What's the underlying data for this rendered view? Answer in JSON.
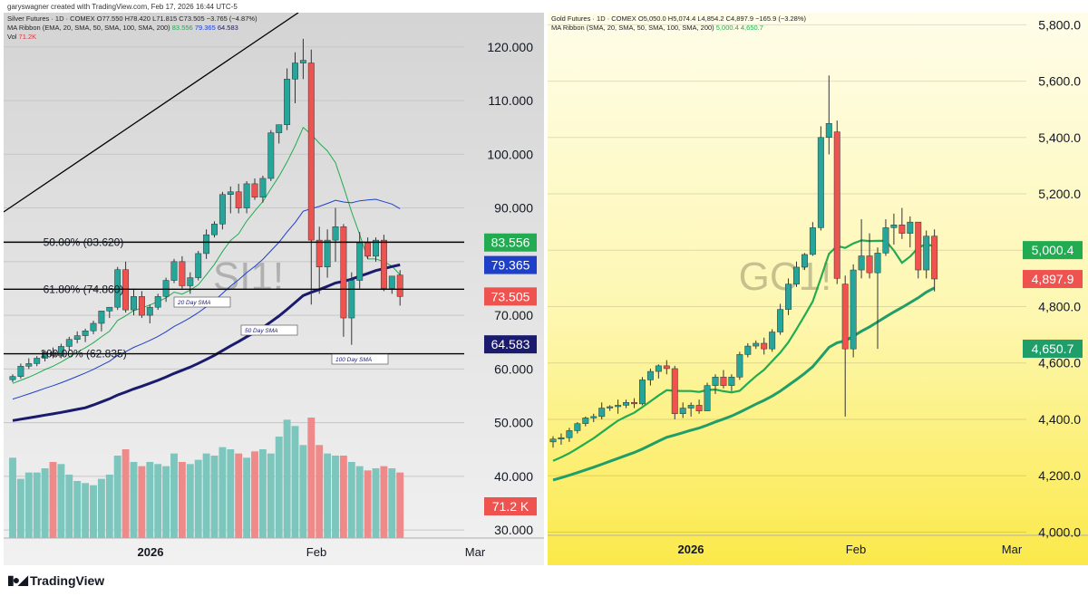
{
  "header": {
    "credit": "garyswagner created with TradingView.com, Feb 17, 2026 16:44 UTC-5"
  },
  "footer": {
    "brand": "TradingView"
  },
  "colors": {
    "up": "#26a69a",
    "down": "#ef5350",
    "sma20": "#22ab50",
    "sma50": "#1e40c8",
    "sma100": "#1a1a6e",
    "gold_sma20": "#22ab50",
    "gold_sma50": "#1f9e6a",
    "vol_up": "#7dc6bd",
    "vol_down": "#ef8a8a"
  },
  "chart_data": [
    {
      "type": "candlestick",
      "symbol_watermark": "SI1!",
      "legend": {
        "line1": "Silver Futures · 1D · COMEX  O77.550  H78.420  L71.815  C73.505  −3.765 (−4.87%)",
        "ribbon_label": "MA Ribbon (EMA, 20, SMA, 50, SMA, 100, SMA, 200)",
        "ribbon_values": [
          "83.556",
          "79.365",
          "64.583"
        ],
        "vol_label": "Vol",
        "vol_value": "71.2K"
      },
      "x_labels": [
        "2026",
        "Feb",
        "Mar"
      ],
      "ylim": [
        28.5,
        123
      ],
      "y_ticks": [
        "120.000",
        "110.000",
        "100.000",
        "90.000",
        "80.000",
        "70.000",
        "60.000",
        "50.000",
        "40.000",
        "30.000"
      ],
      "y_tick_values": [
        120,
        110,
        100,
        90,
        80,
        70,
        60,
        50,
        40,
        30
      ],
      "candles": [
        [
          58.0,
          59.0,
          57.5,
          58.6
        ],
        [
          58.6,
          61.0,
          58.2,
          60.5
        ],
        [
          60.5,
          62.0,
          60.0,
          61.0
        ],
        [
          61.0,
          62.4,
          60.5,
          62.0
        ],
        [
          62.0,
          63.5,
          61.4,
          63.1
        ],
        [
          63.1,
          64.0,
          62.0,
          62.5
        ],
        [
          62.5,
          64.7,
          62.0,
          64.2
        ],
        [
          64.2,
          66.0,
          63.5,
          65.5
        ],
        [
          65.5,
          67.0,
          64.8,
          66.2
        ],
        [
          66.2,
          67.5,
          65.0,
          67.1
        ],
        [
          67.1,
          69.0,
          66.5,
          68.5
        ],
        [
          68.5,
          70.0,
          67.0,
          70.8
        ],
        [
          70.8,
          71.5,
          69.5,
          71.5
        ],
        [
          71.5,
          79.0,
          71.0,
          78.5
        ],
        [
          78.5,
          80.0,
          70.5,
          71.0
        ],
        [
          71.0,
          75.0,
          70.0,
          73.5
        ],
        [
          73.5,
          74.5,
          69.5,
          70.0
        ],
        [
          70.0,
          72.0,
          68.5,
          71.5
        ],
        [
          71.5,
          74.0,
          71.0,
          73.5
        ],
        [
          73.5,
          77.0,
          72.5,
          76.5
        ],
        [
          76.5,
          80.5,
          76.0,
          80.0
        ],
        [
          80.0,
          81.0,
          75.0,
          75.5
        ],
        [
          75.5,
          78.0,
          74.0,
          77.0
        ],
        [
          77.0,
          82.0,
          76.5,
          81.5
        ],
        [
          81.5,
          86.0,
          80.5,
          85.0
        ],
        [
          85.0,
          87.5,
          84.5,
          87.0
        ],
        [
          87.0,
          93.0,
          86.0,
          92.5
        ],
        [
          92.5,
          94.0,
          89.0,
          93.0
        ],
        [
          93.0,
          94.5,
          89.0,
          90.0
        ],
        [
          90.0,
          95.0,
          89.0,
          94.5
        ],
        [
          94.5,
          95.5,
          91.5,
          92.0
        ],
        [
          92.0,
          96.0,
          91.0,
          95.5
        ],
        [
          95.5,
          104.5,
          95.0,
          104.0
        ],
        [
          104.0,
          105.5,
          102.0,
          105.5
        ],
        [
          105.5,
          116.0,
          104.5,
          114.0
        ],
        [
          114.0,
          119.0,
          109.5,
          117.0
        ],
        [
          117.0,
          121.5,
          114.0,
          117.5
        ],
        [
          117.0,
          119.5,
          72.0,
          84.0
        ],
        [
          84.0,
          86.5,
          74.0,
          79.0
        ],
        [
          79.0,
          86.0,
          77.0,
          84.0
        ],
        [
          84.0,
          90.0,
          80.0,
          86.5
        ],
        [
          86.5,
          87.0,
          66.0,
          69.5
        ],
        [
          69.5,
          78.0,
          64.5,
          76.5
        ],
        [
          76.5,
          85.5,
          75.0,
          83.5
        ],
        [
          83.5,
          84.5,
          80.5,
          81.0
        ],
        [
          81.0,
          84.5,
          80.0,
          84.0
        ],
        [
          84.0,
          85.0,
          74.5,
          75.0
        ],
        [
          75.0,
          77.0,
          74.0,
          77.3
        ],
        [
          77.5,
          78.4,
          71.8,
          73.5
        ]
      ],
      "volume": [
        38,
        28,
        31,
        31,
        33,
        36,
        35,
        30,
        27,
        26,
        25,
        28,
        30,
        39,
        42,
        36,
        34,
        36,
        35,
        34,
        40,
        36,
        35,
        37,
        40,
        39,
        43,
        42,
        40,
        38,
        41,
        42,
        40,
        48,
        56,
        53,
        44,
        57,
        44,
        40,
        39,
        39,
        36,
        34,
        32,
        33,
        34,
        33,
        31
      ],
      "lines": [
        {
          "name": "50.00% (83.620)",
          "value": 83.62,
          "color": "#000000"
        },
        {
          "name": "61.80% (74.860)",
          "value": 74.86,
          "color": "#000000"
        },
        {
          "name": "100.00% (62.835)",
          "value": 62.835,
          "color": "#000000"
        }
      ],
      "sma_boxes": [
        "20 Day SMA",
        "50 Day SMA",
        "100 Day SMA"
      ],
      "price_tags": [
        {
          "label": "83.556",
          "value": 83.556,
          "color": "#22ab50"
        },
        {
          "label": "79.365",
          "value": 79.365,
          "color": "#1e40c8"
        },
        {
          "label": "73.505",
          "value": 73.505,
          "color": "#ef5350"
        },
        {
          "label": "64.583",
          "value": 64.583,
          "color": "#1a1a6e"
        }
      ],
      "vol_tag": {
        "label": "71.2 K",
        "color": "#ef5350"
      }
    },
    {
      "type": "candlestick",
      "symbol_watermark": "GC1!",
      "legend": {
        "line1": "Gold Futures · 1D · COMEX  O5,050.0  H5,074.4  L4,854.2  C4,897.9  −165.9 (−3.28%)",
        "ribbon_label": "MA Ribbon (SMA, 20, SMA, 50, SMA, 100, SMA, 200)",
        "ribbon_values": [
          "5,000.4",
          "4,650.7"
        ]
      },
      "x_labels": [
        "2026",
        "Feb",
        "Mar"
      ],
      "ylim": [
        3995,
        5830
      ],
      "y_ticks": [
        "5,800.0",
        "5,600.0",
        "5,400.0",
        "5,200.0",
        "5,000.0",
        "4,800.0",
        "4,600.0",
        "4,400.0",
        "4,200.0",
        "4,000.0"
      ],
      "y_tick_values": [
        5800,
        5600,
        5400,
        5200,
        5000,
        4800,
        4600,
        4400,
        4200,
        4000
      ],
      "candles": [
        [
          4320,
          4340,
          4300,
          4330
        ],
        [
          4330,
          4350,
          4310,
          4335
        ],
        [
          4335,
          4370,
          4320,
          4360
        ],
        [
          4360,
          4390,
          4350,
          4385
        ],
        [
          4385,
          4410,
          4375,
          4405
        ],
        [
          4405,
          4420,
          4390,
          4410
        ],
        [
          4410,
          4460,
          4400,
          4440
        ],
        [
          4440,
          4450,
          4430,
          4445
        ],
        [
          4445,
          4470,
          4420,
          4450
        ],
        [
          4450,
          4470,
          4440,
          4460
        ],
        [
          4460,
          4475,
          4440,
          4455
        ],
        [
          4455,
          4550,
          4450,
          4540
        ],
        [
          4540,
          4580,
          4520,
          4570
        ],
        [
          4570,
          4595,
          4545,
          4590
        ],
        [
          4590,
          4610,
          4560,
          4580
        ],
        [
          4580,
          4590,
          4400,
          4420
        ],
        [
          4420,
          4460,
          4405,
          4440
        ],
        [
          4440,
          4460,
          4410,
          4450
        ],
        [
          4450,
          4470,
          4420,
          4430
        ],
        [
          4430,
          4530,
          4430,
          4520
        ],
        [
          4520,
          4560,
          4490,
          4550
        ],
        [
          4550,
          4575,
          4510,
          4520
        ],
        [
          4520,
          4560,
          4500,
          4550
        ],
        [
          4550,
          4640,
          4540,
          4630
        ],
        [
          4630,
          4670,
          4620,
          4660
        ],
        [
          4660,
          4680,
          4650,
          4670
        ],
        [
          4670,
          4690,
          4630,
          4650
        ],
        [
          4650,
          4720,
          4640,
          4710
        ],
        [
          4710,
          4810,
          4700,
          4790
        ],
        [
          4790,
          4900,
          4770,
          4880
        ],
        [
          4880,
          4960,
          4870,
          4940
        ],
        [
          4940,
          4990,
          4930,
          4985
        ],
        [
          4985,
          5100,
          4980,
          5080
        ],
        [
          5080,
          5440,
          5070,
          5400
        ],
        [
          5400,
          5620,
          5340,
          5450
        ],
        [
          5420,
          5460,
          4880,
          4900
        ],
        [
          4880,
          4910,
          4410,
          4650
        ],
        [
          4650,
          4950,
          4620,
          4930
        ],
        [
          4930,
          5110,
          4900,
          4980
        ],
        [
          4980,
          5060,
          4900,
          4920
        ],
        [
          4920,
          5010,
          4650,
          4990
        ],
        [
          4990,
          5110,
          4980,
          5080
        ],
        [
          5080,
          5130,
          5020,
          5090
        ],
        [
          5090,
          5150,
          5040,
          5060
        ],
        [
          5060,
          5120,
          5010,
          5100
        ],
        [
          5100,
          5090,
          4900,
          4930
        ],
        [
          4930,
          5070,
          4900,
          5050
        ],
        [
          5050,
          5074,
          4854,
          4898
        ]
      ],
      "lines": [],
      "price_tags": [
        {
          "label": "5,000.4",
          "value": 5000.4,
          "color": "#22ab50"
        },
        {
          "label": "4,897.9",
          "value": 4897.9,
          "color": "#ef5350"
        },
        {
          "label": "4,650.7",
          "value": 4650.7,
          "color": "#1f9e6a"
        }
      ]
    }
  ]
}
